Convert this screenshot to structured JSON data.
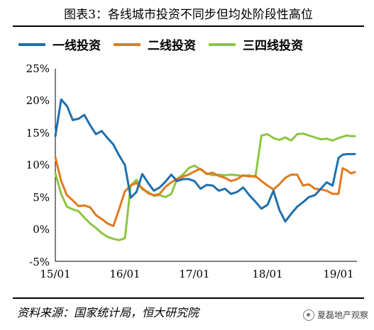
{
  "header": {
    "title": "图表3：各线城市投资不同步但均处阶段性高位"
  },
  "footer": {
    "source": "资料来源：国家统计局，恒大研究院",
    "watermark": "夏磊地产观察"
  },
  "chart_data": {
    "type": "line",
    "title": "图表3：各线城市投资不同步但均处阶段性高位",
    "xlabel": "",
    "ylabel": "",
    "x_ticks": [
      "15/01",
      "16/01",
      "17/01",
      "18/01",
      "19/01"
    ],
    "y_ticks": [
      "25%",
      "20%",
      "15%",
      "10%",
      "5%",
      "0%",
      "-5%"
    ],
    "ylim": [
      -5,
      25
    ],
    "grid": false,
    "legend_position": "top",
    "months": [
      "2015-01",
      "2015-02",
      "2015-03",
      "2015-04",
      "2015-05",
      "2015-06",
      "2015-07",
      "2015-08",
      "2015-09",
      "2015-10",
      "2015-11",
      "2015-12",
      "2016-01",
      "2016-02",
      "2016-03",
      "2016-04",
      "2016-05",
      "2016-06",
      "2016-07",
      "2016-08",
      "2016-09",
      "2016-10",
      "2016-11",
      "2016-12",
      "2017-01",
      "2017-02",
      "2017-03",
      "2017-04",
      "2017-05",
      "2017-06",
      "2017-07",
      "2017-08",
      "2017-09",
      "2017-10",
      "2017-11",
      "2017-12",
      "2018-01",
      "2018-02",
      "2018-03",
      "2018-04",
      "2018-05",
      "2018-06",
      "2018-07",
      "2018-08",
      "2018-09",
      "2018-10",
      "2018-11",
      "2018-12",
      "2019-01",
      "2019-02",
      "2019-03",
      "2019-04",
      "2019-05"
    ],
    "series": [
      {
        "name": "一线投资",
        "color": "#1f6fae",
        "values": [
          14.5,
          20.2,
          19.2,
          17.0,
          17.2,
          17.8,
          16.2,
          14.8,
          15.3,
          14.2,
          13.2,
          11.5,
          10.0,
          4.9,
          5.8,
          8.6,
          7.2,
          6.0,
          6.5,
          7.4,
          8.5,
          7.5,
          7.8,
          7.8,
          7.5,
          6.3,
          6.9,
          6.8,
          6.0,
          6.3,
          5.5,
          5.8,
          6.5,
          5.3,
          4.3,
          3.2,
          3.8,
          6.0,
          3.0,
          1.2,
          2.4,
          3.5,
          4.2,
          5.0,
          5.3,
          6.3,
          7.3,
          6.8,
          11.1,
          11.6,
          11.7,
          11.7,
          11.7
        ]
      },
      {
        "name": "二线投资",
        "color": "#e07a1f",
        "values": [
          11.2,
          7.5,
          5.3,
          4.5,
          3.6,
          3.7,
          3.4,
          2.2,
          1.6,
          0.9,
          0.5,
          3.1,
          5.9,
          6.8,
          7.2,
          6.4,
          5.6,
          5.3,
          5.5,
          6.6,
          7.3,
          7.8,
          8.2,
          8.5,
          9.0,
          9.4,
          8.6,
          8.8,
          8.3,
          8.0,
          7.5,
          7.8,
          8.4,
          8.2,
          8.3,
          7.5,
          6.8,
          6.2,
          7.0,
          8.0,
          8.5,
          8.5,
          6.8,
          7.0,
          6.3,
          6.2,
          6.0,
          5.5,
          5.5,
          9.5,
          9.2,
          8.7,
          8.9
        ]
      },
      {
        "name": "三四线投资",
        "color": "#8cc63f",
        "values": [
          8.7,
          5.5,
          3.5,
          3.1,
          2.8,
          1.8,
          0.9,
          0.2,
          -0.6,
          -1.2,
          -1.5,
          -1.7,
          -1.4,
          6.8,
          7.7,
          6.2,
          5.8,
          5.2,
          5.3,
          5.0,
          5.5,
          7.8,
          8.5,
          9.5,
          9.9,
          9.3,
          8.7,
          8.4,
          8.5,
          8.4,
          8.5,
          8.4,
          8.3,
          8.4,
          8.1,
          14.6,
          14.8,
          14.2,
          13.9,
          14.3,
          13.8,
          14.8,
          14.9,
          14.6,
          14.3,
          14.0,
          14.1,
          13.8,
          14.2,
          14.4,
          14.6,
          14.5,
          14.5
        ]
      }
    ]
  }
}
